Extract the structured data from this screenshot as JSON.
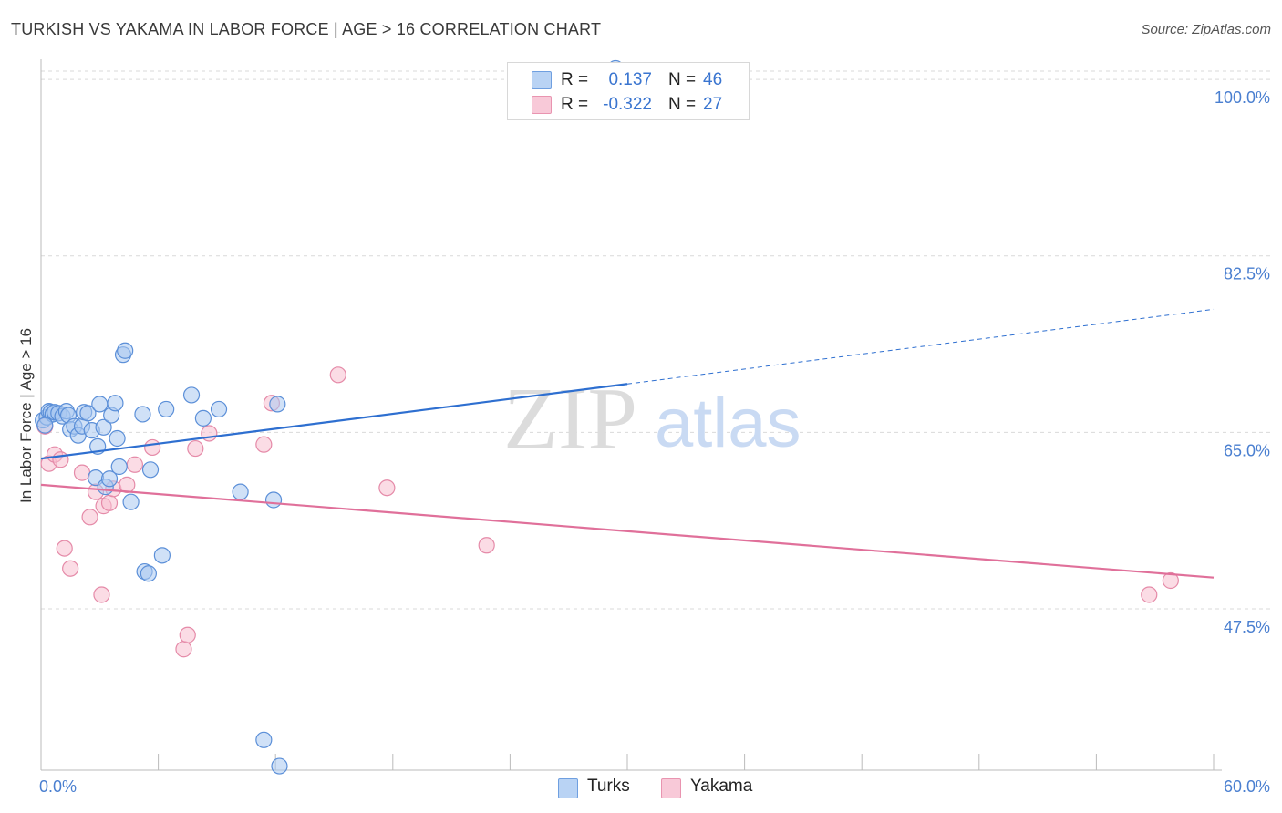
{
  "header": {
    "title": "TURKISH VS YAKAMA IN LABOR FORCE | AGE > 16 CORRELATION CHART",
    "source": "Source: ZipAtlas.com"
  },
  "watermark": {
    "zip": "ZIP",
    "atlas": "atlas"
  },
  "legend": {
    "rows": [
      {
        "r_label": "R =",
        "r_value": "0.137",
        "n_label": "N =",
        "n_value": "46"
      },
      {
        "r_label": "R =",
        "r_value": "-0.322",
        "n_label": "N =",
        "n_value": "27"
      }
    ]
  },
  "bottom_legend": {
    "turks": "Turks",
    "yakama": "Yakama"
  },
  "colors": {
    "turks_fill": "#aac8f0",
    "turks_stroke": "#5b8fd8",
    "turks_line": "#2e6fd0",
    "yakama_fill": "#f7bfd0",
    "yakama_stroke": "#e58aa8",
    "yakama_line": "#e0709a",
    "grid": "#d9d9d9",
    "axis_text": "#4a7fd0"
  },
  "chart_data": {
    "type": "scatter",
    "title": "TURKISH VS YAKAMA IN LABOR FORCE | AGE > 16 CORRELATION CHART",
    "xlabel": "",
    "ylabel": "In Labor Force | Age > 16",
    "xlim": [
      0,
      60
    ],
    "ylim": [
      31.5,
      102
    ],
    "x_tick_labels": [
      "0.0%",
      "60.0%"
    ],
    "y_ticks": [
      100,
      82.5,
      65,
      47.5
    ],
    "y_tick_labels": [
      "100.0%",
      "82.5%",
      "65.0%",
      "47.5%"
    ],
    "grid": true,
    "series": [
      {
        "name": "Turks",
        "R": 0.137,
        "N": 46,
        "trend": {
          "x0": 0,
          "y0": 62.4,
          "x1": 30,
          "y1": 69.8,
          "x_dash_end": 60,
          "y_dash_end": 77.2
        },
        "points": [
          [
            0.1,
            66.2
          ],
          [
            0.3,
            66.5
          ],
          [
            0.4,
            67.1
          ],
          [
            0.5,
            67.0
          ],
          [
            0.6,
            66.8
          ],
          [
            0.7,
            67.0
          ],
          [
            0.9,
            66.9
          ],
          [
            1.1,
            66.6
          ],
          [
            1.3,
            67.1
          ],
          [
            1.4,
            66.7
          ],
          [
            1.5,
            65.3
          ],
          [
            1.7,
            65.6
          ],
          [
            1.9,
            64.7
          ],
          [
            2.1,
            65.6
          ],
          [
            2.2,
            67.0
          ],
          [
            2.4,
            66.9
          ],
          [
            2.6,
            65.2
          ],
          [
            2.8,
            60.5
          ],
          [
            2.9,
            63.6
          ],
          [
            3.0,
            67.8
          ],
          [
            3.2,
            65.5
          ],
          [
            3.3,
            59.6
          ],
          [
            3.5,
            60.4
          ],
          [
            3.6,
            66.7
          ],
          [
            3.8,
            67.9
          ],
          [
            3.9,
            64.4
          ],
          [
            4.0,
            61.6
          ],
          [
            4.2,
            72.7
          ],
          [
            4.3,
            73.1
          ],
          [
            4.6,
            58.1
          ],
          [
            5.3,
            51.2
          ],
          [
            5.2,
            66.8
          ],
          [
            5.5,
            51.0
          ],
          [
            5.6,
            61.3
          ],
          [
            6.2,
            52.8
          ],
          [
            6.4,
            67.3
          ],
          [
            7.7,
            68.7
          ],
          [
            8.3,
            66.4
          ],
          [
            9.1,
            67.3
          ],
          [
            10.2,
            59.1
          ],
          [
            11.4,
            34.5
          ],
          [
            11.9,
            58.3
          ],
          [
            12.1,
            67.8
          ],
          [
            12.2,
            31.9
          ],
          [
            29.4,
            101.1
          ],
          [
            0.2,
            65.7
          ]
        ]
      },
      {
        "name": "Yakama",
        "R": -0.322,
        "N": 27,
        "trend": {
          "x0": 0,
          "y0": 59.8,
          "x1": 60,
          "y1": 50.6
        },
        "points": [
          [
            0.4,
            61.9
          ],
          [
            0.7,
            62.8
          ],
          [
            1.0,
            62.3
          ],
          [
            1.2,
            53.5
          ],
          [
            1.5,
            51.5
          ],
          [
            2.1,
            61.0
          ],
          [
            2.5,
            56.6
          ],
          [
            2.8,
            59.1
          ],
          [
            3.1,
            48.9
          ],
          [
            3.2,
            57.7
          ],
          [
            3.5,
            58.0
          ],
          [
            3.7,
            59.4
          ],
          [
            4.4,
            59.8
          ],
          [
            4.8,
            61.8
          ],
          [
            5.7,
            63.5
          ],
          [
            7.3,
            43.5
          ],
          [
            7.5,
            44.9
          ],
          [
            7.9,
            63.4
          ],
          [
            8.6,
            64.9
          ],
          [
            11.4,
            63.8
          ],
          [
            11.8,
            67.9
          ],
          [
            15.2,
            70.7
          ],
          [
            17.7,
            59.5
          ],
          [
            22.8,
            53.8
          ],
          [
            56.7,
            48.9
          ],
          [
            57.8,
            50.3
          ],
          [
            0.2,
            65.6
          ]
        ]
      }
    ]
  }
}
